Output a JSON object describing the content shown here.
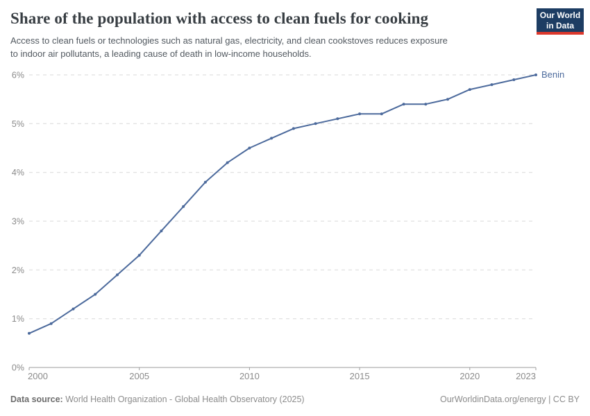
{
  "header": {
    "title": "Share of the population with access to clean fuels for cooking",
    "subtitle_line1": "Access to clean fuels or technologies such as natural gas, electricity, and clean cookstoves reduces exposure",
    "subtitle_line2": "to indoor air pollutants, a leading cause of death in low-income households."
  },
  "logo": {
    "line1": "Our World",
    "line2": "in Data"
  },
  "chart_data": {
    "type": "line",
    "title": "Share of the population with access to clean fuels for cooking",
    "xlabel": "",
    "ylabel": "",
    "xlim": [
      2000,
      2023
    ],
    "ylim": [
      0,
      6
    ],
    "grid": "horizontal-dashed",
    "legend": "end-of-line-label",
    "x": [
      2000,
      2001,
      2002,
      2003,
      2004,
      2005,
      2006,
      2007,
      2008,
      2009,
      2010,
      2011,
      2012,
      2013,
      2014,
      2015,
      2016,
      2017,
      2018,
      2019,
      2020,
      2021,
      2022,
      2023
    ],
    "series": [
      {
        "name": "Benin",
        "color": "#4c6a9c",
        "values": [
          0.7,
          0.9,
          1.2,
          1.5,
          1.9,
          2.3,
          2.8,
          3.3,
          3.8,
          4.2,
          4.5,
          4.7,
          4.9,
          5.0,
          5.1,
          5.2,
          5.2,
          5.4,
          5.4,
          5.5,
          5.7,
          5.8,
          5.9,
          6.0
        ]
      }
    ],
    "ytick_values": [
      0,
      1,
      2,
      3,
      4,
      5,
      6
    ],
    "ytick_labels": [
      "0%",
      "1%",
      "2%",
      "3%",
      "4%",
      "5%",
      "6%"
    ],
    "xtick_values": [
      2000,
      2005,
      2010,
      2015,
      2020,
      2023
    ],
    "xtick_labels": [
      "2000",
      "2005",
      "2010",
      "2015",
      "2020",
      "2023"
    ]
  },
  "footer": {
    "datasource_label": "Data source:",
    "datasource_text": "World Health Organization - Global Health Observatory (2025)",
    "right_text": "OurWorldinData.org/energy | CC BY"
  },
  "colors": {
    "line": "#4c6a9c",
    "grid": "#d9d9d9",
    "axis": "#9e9e9e",
    "tick_label": "#8a8a8a",
    "logo_bg": "#1d3d63",
    "logo_stripe": "#dc382c"
  }
}
